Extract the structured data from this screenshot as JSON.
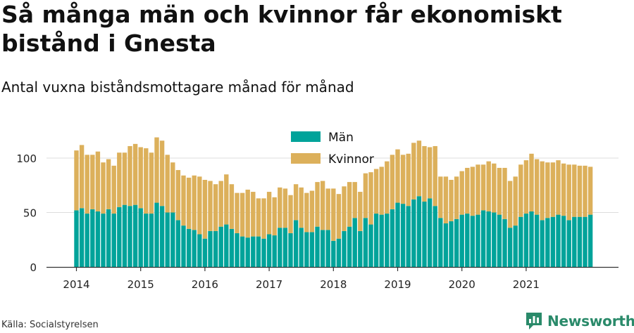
{
  "title": "Så många män och kvinnor får ekonomiskt bistånd i Gnesta",
  "subtitle": "Antal vuxna biståndsmottagare månad för månad",
  "source": "Källa: Socialstyrelsen",
  "brand": {
    "name": "Newsworthy",
    "icon": "newsworthy-logo-icon",
    "color": "#2a8a6a"
  },
  "colors": {
    "men": "#00a39a",
    "women": "#dcb05b",
    "grid": "#dddddd",
    "axis": "#333333"
  },
  "chart_data": {
    "type": "bar",
    "stacked": true,
    "xlabel": "",
    "ylabel": "",
    "ylim": [
      0,
      120
    ],
    "y_ticks": [
      0,
      50,
      100
    ],
    "grid": true,
    "legend_position": "top-center",
    "x_tick_labels": [
      "2014",
      "2015",
      "2016",
      "2017",
      "2018",
      "2019",
      "2020",
      "2021"
    ],
    "start_month": "2014-01",
    "series": [
      {
        "name": "Män",
        "color": "#00a39a",
        "values": [
          52,
          54,
          49,
          53,
          51,
          49,
          53,
          49,
          55,
          57,
          56,
          57,
          54,
          49,
          49,
          59,
          56,
          50,
          50,
          43,
          38,
          35,
          34,
          30,
          26,
          33,
          33,
          37,
          39,
          35,
          31,
          28,
          27,
          28,
          28,
          26,
          30,
          29,
          36,
          36,
          31,
          43,
          36,
          32,
          32,
          37,
          34,
          34,
          24,
          26,
          33,
          37,
          45,
          33,
          45,
          39,
          49,
          48,
          49,
          53,
          59,
          58,
          56,
          62,
          65,
          60,
          63,
          56,
          45,
          40,
          42,
          44,
          48,
          49,
          47,
          48,
          52,
          51,
          50,
          48,
          44,
          36,
          38,
          46,
          49,
          51,
          48,
          43,
          45,
          46,
          48,
          47,
          43,
          46,
          46,
          46,
          48
        ]
      },
      {
        "name": "Kvinnor",
        "color": "#dcb05b",
        "values": [
          55,
          58,
          54,
          50,
          55,
          47,
          46,
          44,
          50,
          48,
          55,
          56,
          56,
          60,
          56,
          60,
          60,
          53,
          46,
          46,
          46,
          47,
          50,
          53,
          54,
          46,
          43,
          42,
          46,
          41,
          37,
          40,
          44,
          41,
          35,
          37,
          39,
          35,
          37,
          36,
          35,
          33,
          37,
          36,
          38,
          41,
          45,
          38,
          48,
          41,
          41,
          41,
          33,
          36,
          41,
          48,
          41,
          44,
          48,
          50,
          49,
          45,
          48,
          52,
          51,
          51,
          47,
          55,
          38,
          43,
          38,
          39,
          40,
          42,
          45,
          46,
          42,
          46,
          45,
          43,
          47,
          43,
          45,
          48,
          49,
          53,
          51,
          54,
          51,
          50,
          50,
          48,
          51,
          48,
          47,
          47,
          44
        ]
      }
    ]
  }
}
